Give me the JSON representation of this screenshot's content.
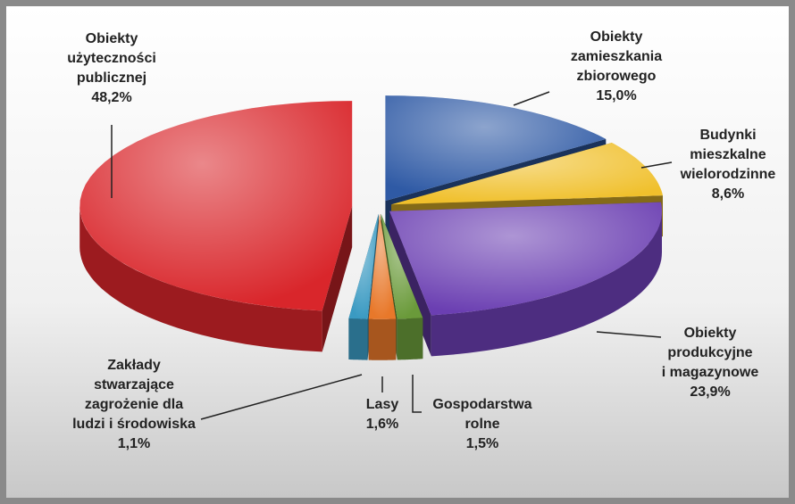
{
  "chart_data": {
    "type": "pie",
    "categories": [
      [
        "Obiekty",
        "zamieszkania",
        "zbiorowego"
      ],
      [
        "Budynki",
        "mieszkalne",
        "wielorodzinne"
      ],
      [
        "Obiekty",
        "produkcyjne",
        "i magazynowe"
      ],
      [
        "Gospodarstwa",
        "rolne"
      ],
      [
        "Lasy"
      ],
      [
        "Zakłady",
        "stwarzające",
        "zagrożenie dla",
        "ludzi i środowiska"
      ],
      [
        "Obiekty",
        "użyteczności",
        "publicznej"
      ]
    ],
    "values": [
      15.0,
      8.6,
      23.9,
      1.5,
      1.6,
      1.1,
      48.2
    ],
    "value_labels": [
      "15,0%",
      "8,6%",
      "23,9%",
      "1,5%",
      "1,6%",
      "1,1%",
      "48,2%"
    ],
    "colors": [
      "#2f5aa5",
      "#f0c02c",
      "#6b3fb2",
      "#6a9a3a",
      "#e8782a",
      "#3a9ac2",
      "#d9262b"
    ]
  }
}
